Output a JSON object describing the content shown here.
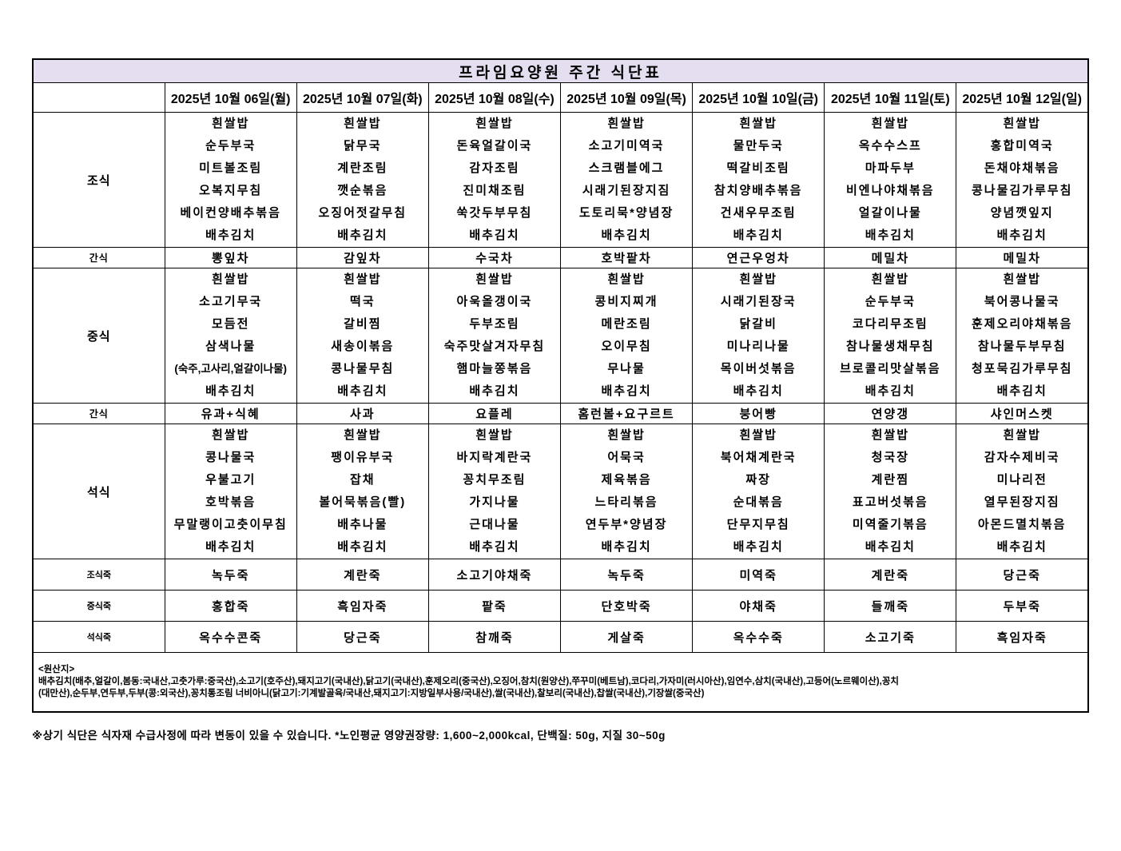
{
  "title": "프라임요양원 주간 식단표",
  "columns": {
    "corner": "",
    "days": [
      "2025년 10월 06일(월)",
      "2025년 10월 07일(화)",
      "2025년 10월 08일(수)",
      "2025년 10월 09일(목)",
      "2025년 10월 10일(금)",
      "2025년 10월 11일(토)",
      "2025년 10월 12일(일)"
    ]
  },
  "rows": [
    {
      "label": "조식",
      "kind": "meal",
      "cells": [
        [
          "흰쌀밥",
          "순두부국",
          "미트볼조림",
          "오복지무침",
          "베이컨양배추볶음",
          "배추김치"
        ],
        [
          "흰쌀밥",
          "닭무국",
          "계란조림",
          "깻순볶음",
          "오징어젓갈무침",
          "배추김치"
        ],
        [
          "흰쌀밥",
          "돈육얼갈이국",
          "감자조림",
          "진미채조림",
          "쑥갓두부무침",
          "배추김치"
        ],
        [
          "흰쌀밥",
          "소고기미역국",
          "스크램블에그",
          "시래기된장지짐",
          "도토리묵*양념장",
          "배추김치"
        ],
        [
          "흰쌀밥",
          "물만두국",
          "떡갈비조림",
          "참치양배추볶음",
          "건새우무조림",
          "배추김치"
        ],
        [
          "흰쌀밥",
          "옥수수스프",
          "마파두부",
          "비엔나야채볶음",
          "얼갈이나물",
          "배추김치"
        ],
        [
          "흰쌀밥",
          "홍합미역국",
          "돈채야채볶음",
          "콩나물김가루무침",
          "양념깻잎지",
          "배추김치"
        ]
      ]
    },
    {
      "label": "간식",
      "kind": "snack",
      "cells": [
        "뽕잎차",
        "감잎차",
        "수국차",
        "호박팥차",
        "연근우엉차",
        "메밀차",
        "메밀차"
      ]
    },
    {
      "label": "중식",
      "kind": "meal",
      "cells": [
        [
          "흰쌀밥",
          "소고기무국",
          "모듬전",
          "삼색나물",
          "(숙주,고사리,얼갈이나물)",
          "배추김치"
        ],
        [
          "흰쌀밥",
          "떡국",
          "갈비찜",
          "새송이볶음",
          "콩나물무침",
          "배추김치"
        ],
        [
          "흰쌀밥",
          "아욱올갱이국",
          "두부조림",
          "숙주맛살겨자무침",
          "햄마늘쫑볶음",
          "배추김치"
        ],
        [
          "흰쌀밥",
          "콩비지찌개",
          "메란조림",
          "오이무침",
          "무나물",
          "배추김치"
        ],
        [
          "흰쌀밥",
          "시래기된장국",
          "닭갈비",
          "미나리나물",
          "목이버섯볶음",
          "배추김치"
        ],
        [
          "흰쌀밥",
          "순두부국",
          "코다리무조림",
          "참나물생채무침",
          "브로콜리맛살볶음",
          "배추김치"
        ],
        [
          "흰쌀밥",
          "북어콩나물국",
          "훈제오리야채볶음",
          "참나물두부무침",
          "청포묵김가루무침",
          "배추김치"
        ]
      ]
    },
    {
      "label": "간식",
      "kind": "snack",
      "cells": [
        "유과+식혜",
        "사과",
        "요플레",
        "홈런볼+요구르트",
        "붕어빵",
        "연양갱",
        "샤인머스켓"
      ]
    },
    {
      "label": "석식",
      "kind": "meal",
      "cells": [
        [
          "흰쌀밥",
          "콩나물국",
          "우불고기",
          "호박볶음",
          "무말랭이고춧이무침",
          "배추김치"
        ],
        [
          "흰쌀밥",
          "팽이유부국",
          "잡채",
          "볼어묵볶음(빨)",
          "배추나물",
          "배추김치"
        ],
        [
          "흰쌀밥",
          "바지락계란국",
          "꽁치무조림",
          "가지나물",
          "근대나물",
          "배추김치"
        ],
        [
          "흰쌀밥",
          "어묵국",
          "제육볶음",
          "느타리볶음",
          "연두부*양념장",
          "배추김치"
        ],
        [
          "흰쌀밥",
          "북어채계란국",
          "짜장",
          "순대볶음",
          "단무지무침",
          "배추김치"
        ],
        [
          "흰쌀밥",
          "청국장",
          "계란찜",
          "표고버섯볶음",
          "미역줄기볶음",
          "배추김치"
        ],
        [
          "흰쌀밥",
          "감자수제비국",
          "미나리전",
          "열무된장지짐",
          "아몬드멸치볶음",
          "배추김치"
        ]
      ]
    },
    {
      "label": "조식죽",
      "kind": "porridge",
      "cells": [
        "녹두죽",
        "계란죽",
        "소고기야채죽",
        "녹두죽",
        "미역죽",
        "계란죽",
        "당근죽"
      ]
    },
    {
      "label": "중식죽",
      "kind": "porridge",
      "cells": [
        "홍합죽",
        "흑임자죽",
        "팥죽",
        "단호박죽",
        "야채죽",
        "들깨죽",
        "두부죽"
      ]
    },
    {
      "label": "석식죽",
      "kind": "porridge",
      "cells": [
        "옥수수콘죽",
        "당근죽",
        "참깨죽",
        "게살죽",
        "옥수수죽",
        "소고기죽",
        "흑임자죽"
      ]
    }
  ],
  "origin": {
    "heading": "<원산지>",
    "line1": "배추김치(배추,얼갈이,봄동:국내산,고춧가루:중국산),소고기(호주산),돼지고기(국내산),닭고기(국내산),훈제오리(중국산),오징어,참치(원양산),쭈꾸미(베트남),코다리,가자미(러시아산),임연수,삼치(국내산),고등어(노르웨이산),꽁치",
    "line2": "(대만산),순두부,연두부,두부(콩:외국산),꽁치통조림 너비아니(닭고기:기계발골육/국내산,돼지고기:지방일부사용/국내산),쌀(국내산),찰보리(국내산),찹쌀(국내산),기장쌀(중국산)"
  },
  "note": "※상기 식단은 식자재 수급사정에 따라 변동이 있을 수 있습니다. *노인평균 영양권장량: 1,600~2,000kcal, 단백질: 50g, 지질 30~50g",
  "colors": {
    "title_bg": "#e5ddf0",
    "border": "#000000",
    "text": "#000000"
  }
}
